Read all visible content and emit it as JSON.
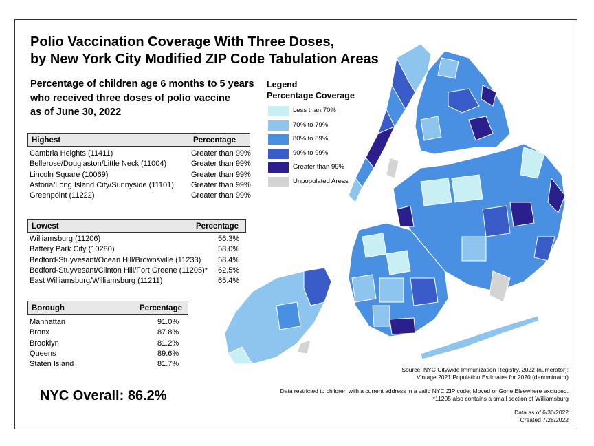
{
  "title_line1": "Polio Vaccination Coverage With Three Doses,",
  "title_line2": "by New York City Modified ZIP Code Tabulation Areas",
  "subtitle_line1": "Percentage of children age 6 months to 5 years",
  "subtitle_line2": "who received three doses of polio vaccine",
  "subtitle_line3": "as of June 30, 2022",
  "highest": {
    "header_area": "Highest",
    "header_pct": "Percentage",
    "rows": [
      {
        "area": "Cambria Heights (11411)",
        "pct": "Greater than 99%"
      },
      {
        "area": "Bellerose/Douglaston/Little Neck (11004)",
        "pct": "Greater than 99%"
      },
      {
        "area": "Lincoln Square (10069)",
        "pct": "Greater than 99%"
      },
      {
        "area": "Astoria/Long Island City/Sunnyside (11101)",
        "pct": "Greater than 99%"
      },
      {
        "area": "Greenpoint (11222)",
        "pct": "Greater than 99%"
      }
    ]
  },
  "lowest": {
    "header_area": "Lowest",
    "header_pct": "Percentage",
    "rows": [
      {
        "area": "Williamsburg (11206)",
        "pct": "56.3%"
      },
      {
        "area": "Battery Park City (10280)",
        "pct": "58.0%"
      },
      {
        "area": "Bedford-Stuyvesant/Ocean Hill/Brownsville (11233)",
        "pct": "58.4%"
      },
      {
        "area": "Bedford-Stuyvesant/Clinton Hill/Fort Greene (11205)*",
        "pct": "62.5%"
      },
      {
        "area": "East Williamsburg/Williamsburg (11211)",
        "pct": "65.4%"
      }
    ]
  },
  "borough": {
    "header_area": "Borough",
    "header_pct": "Percentage",
    "rows": [
      {
        "area": "Manhattan",
        "pct": "91.0%"
      },
      {
        "area": "Bronx",
        "pct": "87.8%"
      },
      {
        "area": "Brooklyn",
        "pct": "81.2%"
      },
      {
        "area": "Queens",
        "pct": "89.6%"
      },
      {
        "area": "Staten Island",
        "pct": "81.7%"
      }
    ]
  },
  "overall": "NYC Overall: 86.2%",
  "legend": {
    "title_line1": "Legend",
    "title_line2": "Percentage Coverage",
    "items": [
      {
        "label": "Less than 70%",
        "color": "#c8f0f4"
      },
      {
        "label": "70% to 79%",
        "color": "#8ec5ef"
      },
      {
        "label": "80% to 89%",
        "color": "#4a90e2"
      },
      {
        "label": "90% to 99%",
        "color": "#3a5cc8"
      },
      {
        "label": "Greater than 99%",
        "color": "#2a1f8c"
      },
      {
        "label": "Unpopulated Areas",
        "color": "#d4d4d4"
      }
    ]
  },
  "notes": {
    "source1": "Source: NYC Citywide Immunization Registry, 2022 (numerator);",
    "source2": "Vintage 2021 Population Estimates for 2020 (denominator)",
    "restrict1": "Data restricted to children with a current address in a valid NYC ZIP code; Moved or Gone Elsewhere excluded.",
    "restrict2": "*11205 also contains a small section of Williamsburg",
    "date1": "Data as of 6/30/2022",
    "date2": "Created 7/28/2022"
  }
}
